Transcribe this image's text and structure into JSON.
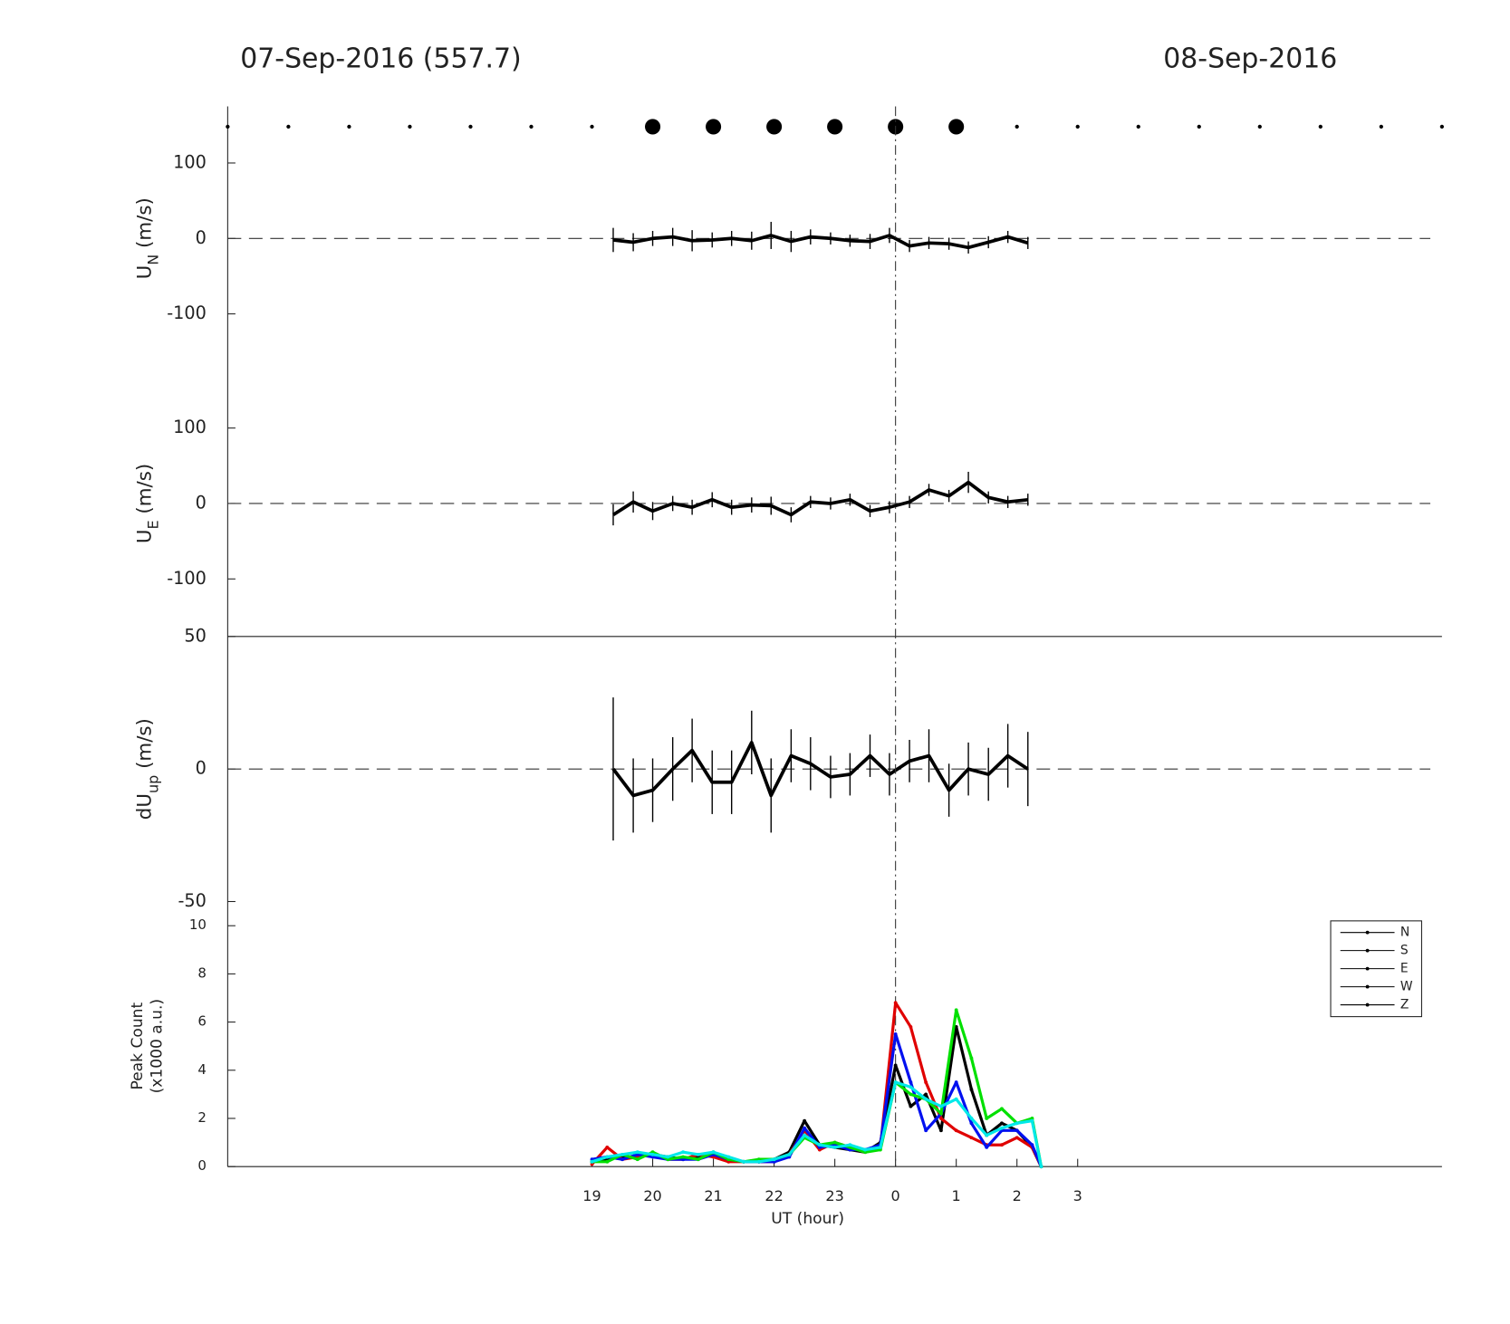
{
  "header": {
    "left": "07-Sep-2016 (557.7)",
    "right": "08-Sep-2016"
  },
  "chart_data": [
    {
      "type": "line",
      "ylabel": [
        [
          {
            "text": "U"
          },
          {
            "text": "N",
            "sub": true
          },
          {
            "text": " (m/s)"
          }
        ]
      ],
      "xlim": [
        13,
        33
      ],
      "ylim": [
        -175,
        175
      ],
      "yticks": [
        -100,
        0,
        100
      ],
      "markers": {
        "x": [
          13,
          14,
          15,
          16,
          17,
          18,
          19,
          20,
          21,
          22,
          23,
          24,
          25,
          26,
          27,
          28,
          29,
          30,
          31,
          32,
          33
        ],
        "sizes": [
          2,
          2,
          2,
          2,
          2,
          2,
          2,
          8,
          8,
          8,
          8,
          8,
          8,
          2,
          2,
          2,
          2,
          2,
          2,
          2,
          2
        ]
      },
      "x": [
        19.35,
        19.68,
        20.0,
        20.33,
        20.65,
        20.98,
        21.3,
        21.63,
        21.95,
        22.28,
        22.6,
        22.93,
        23.25,
        23.58,
        23.9,
        24.23,
        24.55,
        24.88,
        25.2,
        25.53,
        25.85,
        26.18
      ],
      "series": [
        {
          "color": "#000000",
          "values": [
            -2,
            -5,
            0,
            2,
            -3,
            -2,
            0,
            -3,
            4,
            -4,
            2,
            0,
            -3,
            -4,
            4,
            -10,
            -6,
            -7,
            -12,
            -5,
            2,
            -6
          ],
          "errors": [
            16,
            12,
            10,
            12,
            14,
            10,
            10,
            12,
            18,
            14,
            10,
            8,
            8,
            10,
            10,
            8,
            8,
            8,
            8,
            8,
            8,
            8
          ]
        }
      ]
    },
    {
      "type": "line",
      "ylabel": [
        [
          {
            "text": "U"
          },
          {
            "text": "E",
            "sub": true
          },
          {
            "text": " (m/s)"
          }
        ]
      ],
      "xlim": [
        13,
        33
      ],
      "ylim": [
        -175,
        175
      ],
      "yticks": [
        -100,
        0,
        100
      ],
      "x": [
        19.35,
        19.68,
        20.0,
        20.33,
        20.65,
        20.98,
        21.3,
        21.63,
        21.95,
        22.28,
        22.6,
        22.93,
        23.25,
        23.58,
        23.9,
        24.23,
        24.55,
        24.88,
        25.2,
        25.53,
        25.85,
        26.18
      ],
      "series": [
        {
          "color": "#000000",
          "values": [
            -15,
            2,
            -10,
            0,
            -5,
            5,
            -5,
            -2,
            -3,
            -15,
            2,
            0,
            5,
            -10,
            -5,
            2,
            18,
            10,
            28,
            8,
            2,
            5
          ],
          "errors": [
            14,
            14,
            12,
            10,
            10,
            10,
            10,
            10,
            12,
            10,
            8,
            8,
            8,
            8,
            8,
            8,
            8,
            8,
            14,
            8,
            8,
            8
          ]
        }
      ]
    },
    {
      "type": "line",
      "ylabel": [
        [
          {
            "text": "dU"
          },
          {
            "text": "up",
            "sub": true
          },
          {
            "text": " (m/s)"
          }
        ]
      ],
      "xlim": [
        13,
        33
      ],
      "ylim": [
        -50,
        50
      ],
      "yticks": [
        -50,
        0,
        50
      ],
      "x": [
        19.35,
        19.68,
        20.0,
        20.33,
        20.65,
        20.98,
        21.3,
        21.63,
        21.95,
        22.28,
        22.6,
        22.93,
        23.25,
        23.58,
        23.9,
        24.23,
        24.55,
        24.88,
        25.2,
        25.53,
        25.85,
        26.18
      ],
      "series": [
        {
          "color": "#000000",
          "values": [
            0,
            -10,
            -8,
            0,
            7,
            -5,
            -5,
            10,
            -10,
            5,
            2,
            -3,
            -2,
            5,
            -2,
            3,
            5,
            -8,
            0,
            -2,
            5,
            0
          ],
          "errors": [
            27,
            14,
            12,
            12,
            12,
            12,
            12,
            12,
            14,
            10,
            10,
            8,
            8,
            8,
            8,
            8,
            10,
            10,
            10,
            10,
            12,
            14
          ]
        }
      ]
    },
    {
      "type": "line",
      "ylabel": [
        [
          {
            "text": "Peak Count"
          }
        ],
        [
          {
            "text": "(x1000 a.u.)"
          }
        ]
      ],
      "xlabel": "UT (hour)",
      "xlim": [
        13,
        33
      ],
      "ylim": [
        0,
        10
      ],
      "yticks": [
        0,
        2,
        4,
        6,
        8,
        10
      ],
      "xticks": [
        19,
        20,
        21,
        22,
        23,
        {
          "value": 24,
          "label": "0"
        },
        {
          "value": 25,
          "label": "1"
        },
        {
          "value": 26,
          "label": "2"
        },
        {
          "value": 27,
          "label": "3"
        }
      ],
      "legend": "upper right",
      "x": [
        19,
        19.25,
        19.5,
        19.75,
        20,
        20.25,
        20.5,
        20.75,
        21,
        21.25,
        21.5,
        21.75,
        22,
        22.25,
        22.5,
        22.75,
        23,
        23.25,
        23.5,
        23.75,
        24,
        24.25,
        24.5,
        24.75,
        25,
        25.25,
        25.5,
        25.75,
        26,
        26.25,
        26.4
      ],
      "series": [
        {
          "name": "N",
          "color": "#000000",
          "values": [
            0.2,
            0.3,
            0.4,
            0.4,
            0.5,
            0.4,
            0.3,
            0.4,
            0.5,
            0.3,
            0.2,
            0.2,
            0.3,
            0.6,
            1.9,
            0.9,
            0.8,
            0.7,
            0.6,
            1.0,
            4.2,
            2.5,
            3.0,
            1.5,
            5.8,
            3.2,
            1.3,
            1.8,
            1.5,
            0.8,
            0
          ]
        },
        {
          "name": "S",
          "color": "#e00000",
          "values": [
            0.1,
            0.8,
            0.3,
            0.4,
            0.5,
            0.3,
            0.3,
            0.5,
            0.4,
            0.2,
            0.2,
            0.2,
            0.2,
            0.5,
            1.5,
            0.7,
            1.0,
            0.8,
            0.6,
            0.8,
            6.8,
            5.8,
            3.5,
            2.0,
            1.5,
            1.2,
            0.9,
            0.9,
            1.2,
            0.8,
            0
          ]
        },
        {
          "name": "E",
          "color": "#0010f0",
          "values": [
            0.3,
            0.4,
            0.3,
            0.5,
            0.4,
            0.3,
            0.3,
            0.3,
            0.5,
            0.3,
            0.2,
            0.2,
            0.2,
            0.4,
            1.6,
            0.8,
            0.9,
            0.7,
            0.7,
            0.9,
            5.5,
            3.5,
            1.5,
            2.2,
            3.5,
            1.8,
            0.8,
            1.5,
            1.5,
            0.9,
            0
          ]
        },
        {
          "name": "W",
          "color": "#00e000",
          "values": [
            0.2,
            0.2,
            0.5,
            0.3,
            0.6,
            0.3,
            0.4,
            0.3,
            0.6,
            0.3,
            0.2,
            0.3,
            0.3,
            0.5,
            1.2,
            0.9,
            1.0,
            0.8,
            0.6,
            0.7,
            3.5,
            3.0,
            2.8,
            2.2,
            6.5,
            4.5,
            2.0,
            2.4,
            1.8,
            2.0,
            0
          ]
        },
        {
          "name": "Z",
          "color": "#00e8e8",
          "values": [
            0.2,
            0.4,
            0.5,
            0.6,
            0.5,
            0.4,
            0.6,
            0.5,
            0.6,
            0.4,
            0.2,
            0.2,
            0.3,
            0.5,
            1.3,
            0.9,
            0.8,
            0.9,
            0.7,
            0.8,
            3.5,
            3.3,
            2.8,
            2.5,
            2.8,
            2.0,
            1.3,
            1.6,
            1.8,
            1.9,
            0
          ]
        }
      ]
    }
  ]
}
